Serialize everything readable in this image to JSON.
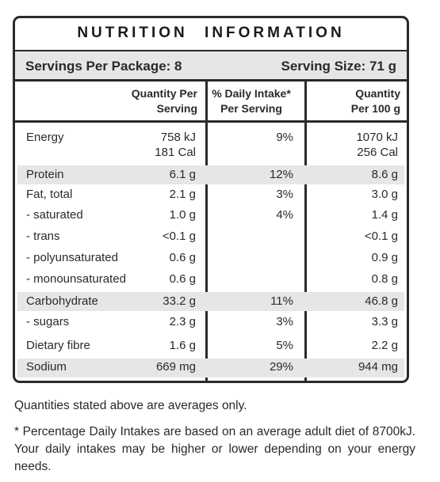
{
  "title": "NUTRITION INFORMATION",
  "servings_per_package": "Servings Per Package: 8",
  "serving_size": "Serving Size: 71 g",
  "headers": {
    "col1_line1": "Quantity Per",
    "col1_line2": "Serving",
    "col2_line1": "% Daily Intake*",
    "col2_line2": "Per Serving",
    "col3_line1": "Quantity",
    "col3_line2": "Per 100 g"
  },
  "rows": [
    {
      "name": "Energy",
      "per_serving": "758 kJ",
      "per_serving_2": "181 Cal",
      "daily": "9%",
      "per_100g": "1070 kJ",
      "per_100g_2": "256 Cal"
    },
    {
      "name": "Protein",
      "per_serving": "6.1 g",
      "daily": "12%",
      "per_100g": "8.6 g"
    },
    {
      "name": "Fat, total",
      "per_serving": "2.1 g",
      "daily": "3%",
      "per_100g": "3.0 g"
    },
    {
      "name": "- saturated",
      "per_serving": "1.0 g",
      "daily": "4%",
      "per_100g": "1.4 g"
    },
    {
      "name": "- trans",
      "per_serving": "<0.1 g",
      "daily": "",
      "per_100g": "<0.1 g"
    },
    {
      "name": "- polyunsaturated",
      "per_serving": "0.6 g",
      "daily": "",
      "per_100g": "0.9 g"
    },
    {
      "name": "- monounsaturated",
      "per_serving": "0.6 g",
      "daily": "",
      "per_100g": "0.8 g"
    },
    {
      "name": "Carbohydrate",
      "per_serving": "33.2 g",
      "daily": "11%",
      "per_100g": "46.8 g"
    },
    {
      "name": "- sugars",
      "per_serving": "2.3 g",
      "daily": "3%",
      "per_100g": "3.3 g"
    },
    {
      "name": "Dietary fibre",
      "per_serving": "1.6 g",
      "daily": "5%",
      "per_100g": "2.2 g"
    },
    {
      "name": "Sodium",
      "per_serving": "669 mg",
      "daily": "29%",
      "per_100g": "944 mg"
    }
  ],
  "notes": {
    "averages": "Quantities stated above are averages only.",
    "daily_intake": "* Percentage Daily Intakes are based on an average adult diet of 8700kJ. Your daily intakes may be higher or lower depending on your energy needs."
  },
  "colors": {
    "shade": "#e6e6e6",
    "border": "#2a2a2a"
  }
}
